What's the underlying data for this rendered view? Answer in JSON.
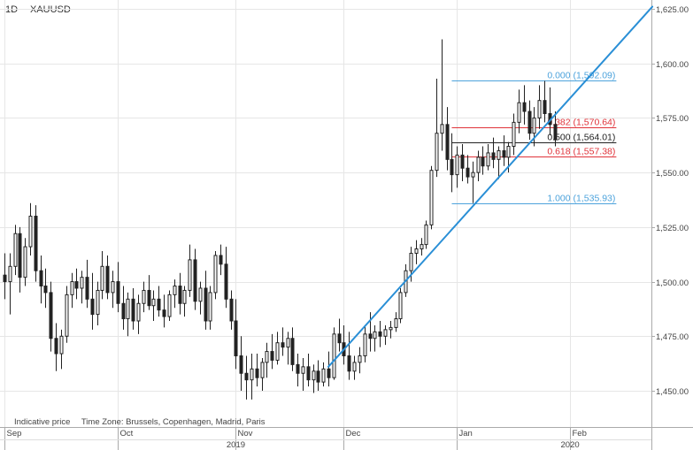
{
  "header": {
    "timeframe": "1D",
    "symbol": "XAUUSD"
  },
  "footer": {
    "indicative": "Indicative price",
    "timezone": "Time Zone: Brussels, Copenhagen, Madrid, Paris"
  },
  "colors": {
    "grid": "#e6e6e6",
    "axis": "#aaaaaa",
    "candle": "#222222",
    "trendline": "#2a8fd6",
    "fib_blue": "#4da3dc",
    "fib_red": "#e0333a",
    "fib_black": "#222222",
    "text": "#444444"
  },
  "chart_data": {
    "type": "candlestick",
    "title": "XAUUSD",
    "interval": "1D",
    "ylim": [
      1430,
      1628
    ],
    "y_ticks": [
      "1,450.00",
      "1,475.00",
      "1,500.00",
      "1,525.00",
      "1,550.00",
      "1,575.00",
      "1,600.00",
      "1,625.00"
    ],
    "y_tick_values": [
      1450,
      1475,
      1500,
      1525,
      1550,
      1575,
      1600,
      1625
    ],
    "x_ticks": [
      {
        "label": "Sep",
        "index": 0
      },
      {
        "label": "Oct",
        "index": 22
      },
      {
        "label": "Nov",
        "index": 45
      },
      {
        "label": "Dec",
        "index": 66
      },
      {
        "label": "Jan",
        "index": 88
      },
      {
        "label": "Feb",
        "index": 110
      }
    ],
    "year_labels": [
      {
        "label": "2019",
        "index": 45
      },
      {
        "label": "2020",
        "index": 110
      }
    ],
    "year_separators": [
      88
    ],
    "grid": true,
    "total_slots": 126,
    "candles": [
      {
        "o": 1503,
        "h": 1513,
        "l": 1492,
        "c": 1500
      },
      {
        "o": 1500,
        "h": 1513,
        "l": 1485,
        "c": 1507
      },
      {
        "o": 1507,
        "h": 1526,
        "l": 1503,
        "c": 1522
      },
      {
        "o": 1522,
        "h": 1525,
        "l": 1495,
        "c": 1502
      },
      {
        "o": 1502,
        "h": 1520,
        "l": 1498,
        "c": 1516
      },
      {
        "o": 1516,
        "h": 1536,
        "l": 1512,
        "c": 1530
      },
      {
        "o": 1530,
        "h": 1535,
        "l": 1500,
        "c": 1505
      },
      {
        "o": 1505,
        "h": 1512,
        "l": 1490,
        "c": 1498
      },
      {
        "o": 1498,
        "h": 1506,
        "l": 1488,
        "c": 1495
      },
      {
        "o": 1495,
        "h": 1500,
        "l": 1468,
        "c": 1474
      },
      {
        "o": 1474,
        "h": 1481,
        "l": 1459,
        "c": 1467
      },
      {
        "o": 1467,
        "h": 1478,
        "l": 1460,
        "c": 1475
      },
      {
        "o": 1475,
        "h": 1498,
        "l": 1472,
        "c": 1494
      },
      {
        "o": 1494,
        "h": 1504,
        "l": 1488,
        "c": 1500
      },
      {
        "o": 1500,
        "h": 1506,
        "l": 1492,
        "c": 1497
      },
      {
        "o": 1497,
        "h": 1505,
        "l": 1490,
        "c": 1502
      },
      {
        "o": 1502,
        "h": 1510,
        "l": 1488,
        "c": 1492
      },
      {
        "o": 1492,
        "h": 1504,
        "l": 1478,
        "c": 1485
      },
      {
        "o": 1485,
        "h": 1500,
        "l": 1480,
        "c": 1496
      },
      {
        "o": 1496,
        "h": 1514,
        "l": 1492,
        "c": 1507
      },
      {
        "o": 1507,
        "h": 1512,
        "l": 1492,
        "c": 1495
      },
      {
        "o": 1495,
        "h": 1505,
        "l": 1488,
        "c": 1500
      },
      {
        "o": 1500,
        "h": 1509,
        "l": 1486,
        "c": 1490
      },
      {
        "o": 1490,
        "h": 1498,
        "l": 1478,
        "c": 1483
      },
      {
        "o": 1483,
        "h": 1495,
        "l": 1475,
        "c": 1492
      },
      {
        "o": 1492,
        "h": 1497,
        "l": 1478,
        "c": 1482
      },
      {
        "o": 1482,
        "h": 1494,
        "l": 1476,
        "c": 1490
      },
      {
        "o": 1490,
        "h": 1500,
        "l": 1486,
        "c": 1496
      },
      {
        "o": 1496,
        "h": 1503,
        "l": 1487,
        "c": 1489
      },
      {
        "o": 1489,
        "h": 1496,
        "l": 1482,
        "c": 1492
      },
      {
        "o": 1492,
        "h": 1498,
        "l": 1484,
        "c": 1487
      },
      {
        "o": 1487,
        "h": 1494,
        "l": 1479,
        "c": 1484
      },
      {
        "o": 1484,
        "h": 1496,
        "l": 1482,
        "c": 1494
      },
      {
        "o": 1494,
        "h": 1501,
        "l": 1488,
        "c": 1498
      },
      {
        "o": 1498,
        "h": 1504,
        "l": 1485,
        "c": 1490
      },
      {
        "o": 1490,
        "h": 1498,
        "l": 1484,
        "c": 1496
      },
      {
        "o": 1496,
        "h": 1517,
        "l": 1493,
        "c": 1510
      },
      {
        "o": 1510,
        "h": 1515,
        "l": 1487,
        "c": 1491
      },
      {
        "o": 1491,
        "h": 1500,
        "l": 1485,
        "c": 1497
      },
      {
        "o": 1497,
        "h": 1505,
        "l": 1478,
        "c": 1482
      },
      {
        "o": 1482,
        "h": 1498,
        "l": 1478,
        "c": 1495
      },
      {
        "o": 1495,
        "h": 1514,
        "l": 1492,
        "c": 1512
      },
      {
        "o": 1512,
        "h": 1517,
        "l": 1503,
        "c": 1508
      },
      {
        "o": 1508,
        "h": 1516,
        "l": 1488,
        "c": 1492
      },
      {
        "o": 1492,
        "h": 1496,
        "l": 1478,
        "c": 1482
      },
      {
        "o": 1482,
        "h": 1492,
        "l": 1460,
        "c": 1466
      },
      {
        "o": 1466,
        "h": 1475,
        "l": 1450,
        "c": 1458
      },
      {
        "o": 1458,
        "h": 1466,
        "l": 1446,
        "c": 1455
      },
      {
        "o": 1455,
        "h": 1467,
        "l": 1446,
        "c": 1460
      },
      {
        "o": 1460,
        "h": 1467,
        "l": 1452,
        "c": 1456
      },
      {
        "o": 1456,
        "h": 1465,
        "l": 1450,
        "c": 1463
      },
      {
        "o": 1463,
        "h": 1472,
        "l": 1456,
        "c": 1468
      },
      {
        "o": 1468,
        "h": 1476,
        "l": 1460,
        "c": 1464
      },
      {
        "o": 1464,
        "h": 1477,
        "l": 1462,
        "c": 1472
      },
      {
        "o": 1472,
        "h": 1479,
        "l": 1466,
        "c": 1470
      },
      {
        "o": 1470,
        "h": 1477,
        "l": 1462,
        "c": 1474
      },
      {
        "o": 1474,
        "h": 1479,
        "l": 1459,
        "c": 1462
      },
      {
        "o": 1462,
        "h": 1467,
        "l": 1452,
        "c": 1458
      },
      {
        "o": 1458,
        "h": 1465,
        "l": 1450,
        "c": 1461
      },
      {
        "o": 1461,
        "h": 1467,
        "l": 1452,
        "c": 1455
      },
      {
        "o": 1455,
        "h": 1462,
        "l": 1449,
        "c": 1459
      },
      {
        "o": 1459,
        "h": 1464,
        "l": 1450,
        "c": 1454
      },
      {
        "o": 1454,
        "h": 1463,
        "l": 1452,
        "c": 1460
      },
      {
        "o": 1460,
        "h": 1468,
        "l": 1452,
        "c": 1456
      },
      {
        "o": 1456,
        "h": 1479,
        "l": 1455,
        "c": 1476
      },
      {
        "o": 1476,
        "h": 1483,
        "l": 1468,
        "c": 1472
      },
      {
        "o": 1472,
        "h": 1480,
        "l": 1462,
        "c": 1466
      },
      {
        "o": 1466,
        "h": 1477,
        "l": 1455,
        "c": 1459
      },
      {
        "o": 1459,
        "h": 1466,
        "l": 1455,
        "c": 1463
      },
      {
        "o": 1463,
        "h": 1470,
        "l": 1458,
        "c": 1466
      },
      {
        "o": 1466,
        "h": 1480,
        "l": 1463,
        "c": 1476
      },
      {
        "o": 1476,
        "h": 1486,
        "l": 1468,
        "c": 1474
      },
      {
        "o": 1474,
        "h": 1480,
        "l": 1468,
        "c": 1477
      },
      {
        "o": 1477,
        "h": 1482,
        "l": 1470,
        "c": 1475
      },
      {
        "o": 1475,
        "h": 1480,
        "l": 1471,
        "c": 1478
      },
      {
        "o": 1478,
        "h": 1482,
        "l": 1474,
        "c": 1479
      },
      {
        "o": 1479,
        "h": 1486,
        "l": 1477,
        "c": 1483
      },
      {
        "o": 1483,
        "h": 1497,
        "l": 1481,
        "c": 1495
      },
      {
        "o": 1495,
        "h": 1508,
        "l": 1493,
        "c": 1505
      },
      {
        "o": 1505,
        "h": 1516,
        "l": 1500,
        "c": 1513
      },
      {
        "o": 1513,
        "h": 1519,
        "l": 1508,
        "c": 1515
      },
      {
        "o": 1515,
        "h": 1520,
        "l": 1512,
        "c": 1517
      },
      {
        "o": 1517,
        "h": 1528,
        "l": 1515,
        "c": 1526
      },
      {
        "o": 1526,
        "h": 1553,
        "l": 1524,
        "c": 1551
      },
      {
        "o": 1551,
        "h": 1593,
        "l": 1548,
        "c": 1568
      },
      {
        "o": 1568,
        "h": 1611,
        "l": 1560,
        "c": 1572
      },
      {
        "o": 1572,
        "h": 1580,
        "l": 1551,
        "c": 1556
      },
      {
        "o": 1556,
        "h": 1568,
        "l": 1541,
        "c": 1549
      },
      {
        "o": 1549,
        "h": 1562,
        "l": 1543,
        "c": 1558
      },
      {
        "o": 1558,
        "h": 1563,
        "l": 1546,
        "c": 1552
      },
      {
        "o": 1552,
        "h": 1558,
        "l": 1545,
        "c": 1548
      },
      {
        "o": 1548,
        "h": 1555,
        "l": 1536,
        "c": 1550
      },
      {
        "o": 1550,
        "h": 1560,
        "l": 1546,
        "c": 1557
      },
      {
        "o": 1557,
        "h": 1562,
        "l": 1549,
        "c": 1553
      },
      {
        "o": 1553,
        "h": 1563,
        "l": 1551,
        "c": 1559
      },
      {
        "o": 1559,
        "h": 1566,
        "l": 1552,
        "c": 1556
      },
      {
        "o": 1556,
        "h": 1562,
        "l": 1547,
        "c": 1560
      },
      {
        "o": 1560,
        "h": 1567,
        "l": 1553,
        "c": 1557
      },
      {
        "o": 1557,
        "h": 1564,
        "l": 1550,
        "c": 1562
      },
      {
        "o": 1562,
        "h": 1577,
        "l": 1558,
        "c": 1573
      },
      {
        "o": 1573,
        "h": 1588,
        "l": 1568,
        "c": 1582
      },
      {
        "o": 1582,
        "h": 1590,
        "l": 1572,
        "c": 1578
      },
      {
        "o": 1578,
        "h": 1583,
        "l": 1565,
        "c": 1568
      },
      {
        "o": 1568,
        "h": 1580,
        "l": 1562,
        "c": 1575
      },
      {
        "o": 1575,
        "h": 1590,
        "l": 1570,
        "c": 1583
      },
      {
        "o": 1583,
        "h": 1592,
        "l": 1573,
        "c": 1577
      },
      {
        "o": 1577,
        "h": 1589,
        "l": 1567,
        "c": 1572
      },
      {
        "o": 1572,
        "h": 1578,
        "l": 1562,
        "c": 1565
      }
    ],
    "trendline": {
      "from": {
        "index": 63,
        "value": 1461
      },
      "to": {
        "index": 126,
        "value": 1626
      }
    },
    "fibonacci": {
      "from_index": 87,
      "to_index": 119,
      "levels": [
        {
          "ratio": "0.000",
          "value": 1592.09,
          "label": "0.000 (1,592.09)",
          "color": "blue"
        },
        {
          "ratio": "0.382",
          "value": 1570.64,
          "label": "0.382 (1,570.64)",
          "color": "red"
        },
        {
          "ratio": "0.500",
          "value": 1564.01,
          "label": "0.500 (1,564.01)",
          "color": "black"
        },
        {
          "ratio": "0.618",
          "value": 1557.38,
          "label": "0.618 (1,557.38)",
          "color": "red"
        },
        {
          "ratio": "1.000",
          "value": 1535.93,
          "label": "1.000 (1,535.93)",
          "color": "blue"
        }
      ]
    }
  }
}
